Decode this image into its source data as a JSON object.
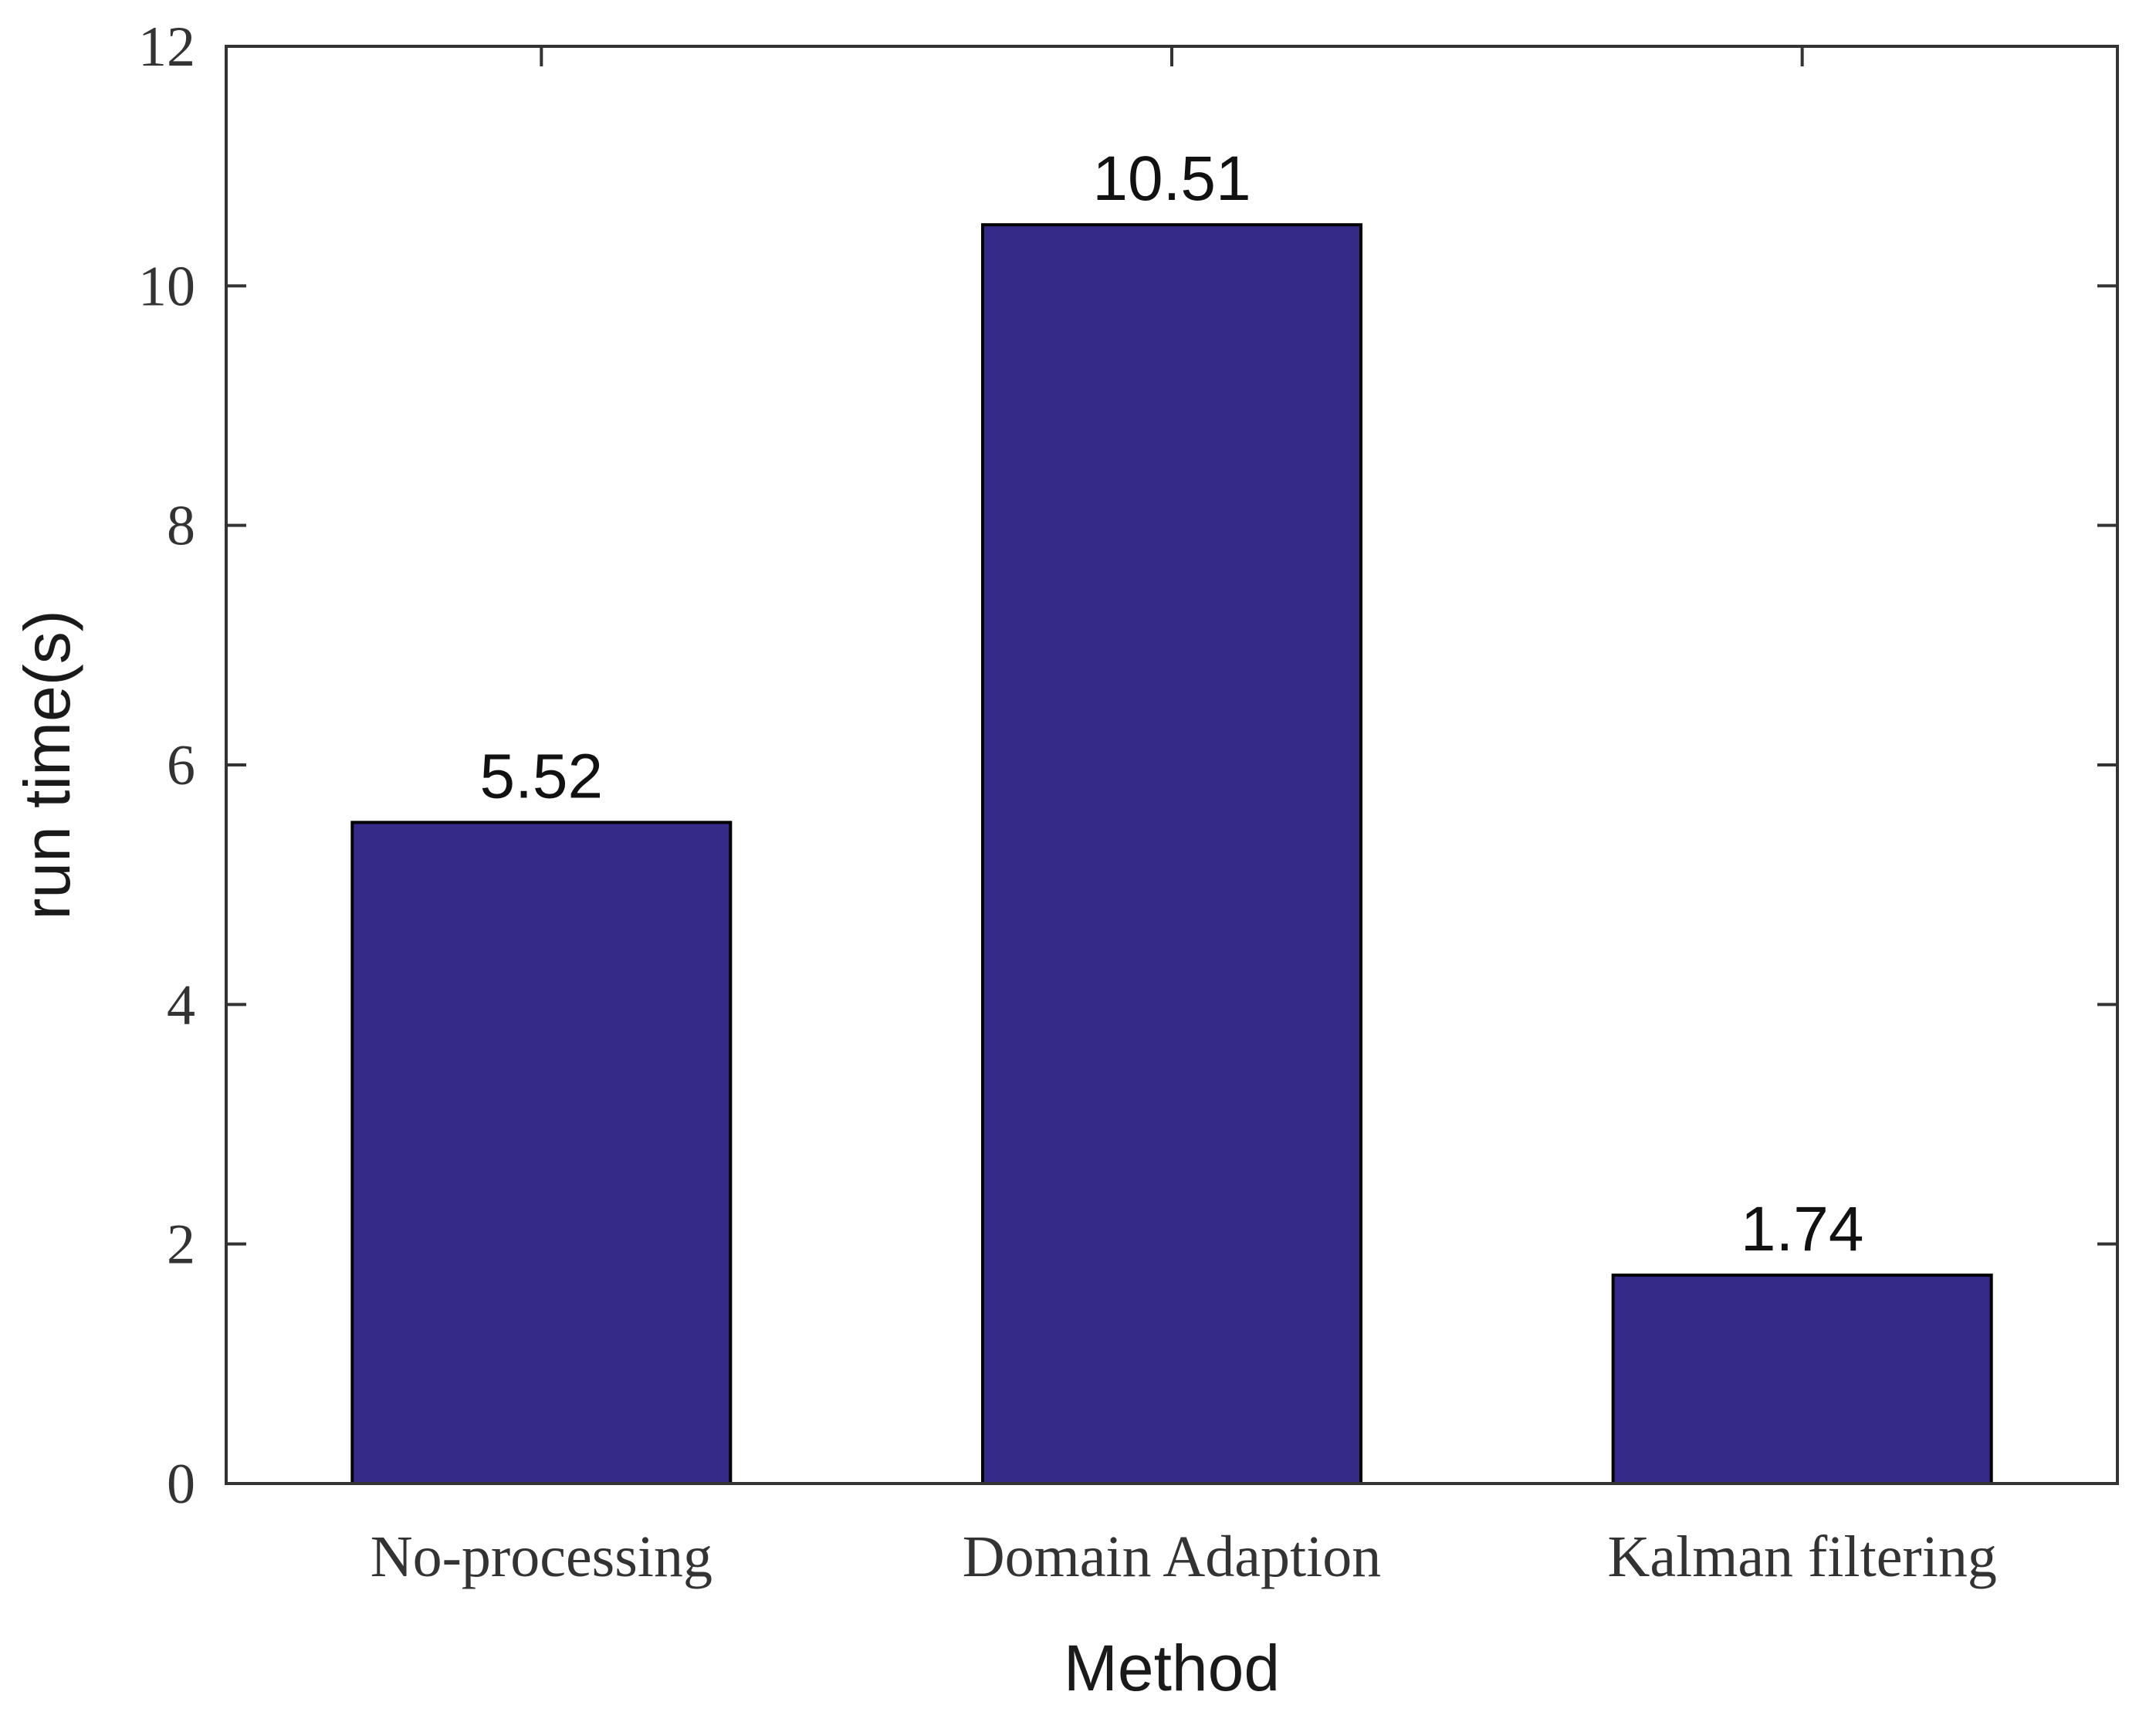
{
  "chart_data": {
    "type": "bar",
    "categories": [
      "No-processing",
      "Domain Adaption",
      "Kalman filtering"
    ],
    "values": [
      5.52,
      10.51,
      1.74
    ],
    "data_labels": [
      "5.52",
      "10.51",
      "1.74"
    ],
    "title": "",
    "xlabel": "Method",
    "ylabel": "run time(s)",
    "ylim": [
      0,
      12
    ],
    "yticks": [
      0,
      2,
      4,
      6,
      8,
      10,
      12
    ],
    "ytick_labels": [
      "0",
      "2",
      "4",
      "6",
      "8",
      "10",
      "12"
    ],
    "grid": false,
    "legend": "none",
    "colors": {
      "bar_fill": "#352A87",
      "bar_edge": "#000000",
      "axis": "#333333"
    }
  }
}
